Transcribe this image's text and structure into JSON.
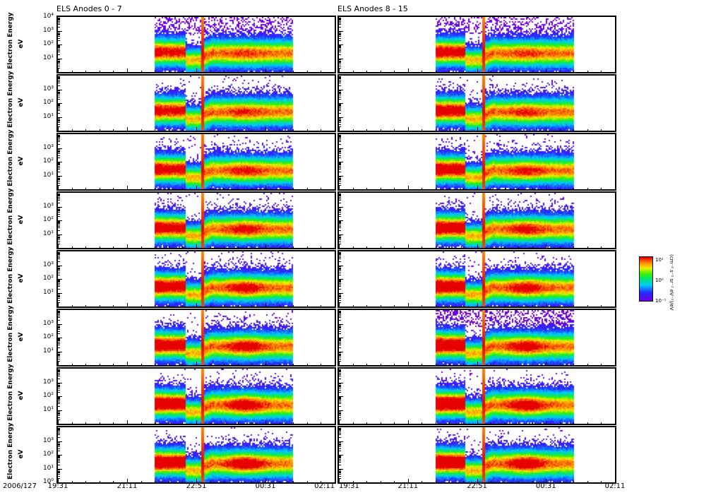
{
  "chart_data": {
    "type": "heatmap",
    "panels": [
      {
        "title": "ELS Anodes 0 - 7",
        "anodes": [
          0,
          1,
          2,
          3,
          4,
          5,
          6,
          7
        ]
      },
      {
        "title": "ELS Anodes 8 - 15",
        "anodes": [
          8,
          9,
          10,
          11,
          12,
          13,
          14,
          15
        ]
      }
    ],
    "ylabel": "Electron Energy",
    "yunit": "eV",
    "yscale": "log",
    "ylim": [
      1,
      10000
    ],
    "yticks_top_panel": [
      "10⁴",
      "10³",
      "10²",
      "10¹"
    ],
    "yticks": [
      "10³",
      "10²",
      "10¹"
    ],
    "ytick_bottom": "10⁰",
    "date": "2006/127",
    "xticks": [
      "19:31",
      "21:11",
      "22:51",
      "00:31",
      "02:11"
    ],
    "x_range_minutes_from_1931": [
      0,
      400
    ],
    "data_coverage_minutes": [
      140,
      340
    ],
    "spike_minute": 208,
    "colorbar": {
      "ticks": [
        "10⁻¹",
        "10⁰",
        "10¹"
      ],
      "label": "(cm⁻² s⁻¹ sr⁻¹ eV⁻¹)/eV",
      "colormap": "rainbow"
    }
  }
}
